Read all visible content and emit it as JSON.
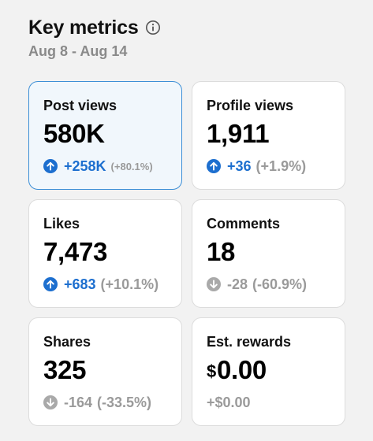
{
  "header": {
    "title": "Key metrics",
    "date_range": "Aug 8 - Aug 14"
  },
  "icons": {
    "info": "info-circle-icon",
    "up": "arrow-up-circle-icon",
    "down": "arrow-down-circle-icon"
  },
  "colors": {
    "accent": "#1d6fcf",
    "muted": "#9a9a9a",
    "selected_bg": "#f1f7fc",
    "selected_border": "#3d8fd6"
  },
  "metrics": [
    {
      "label": "Post views",
      "value": "580K",
      "delta": "+258K",
      "pct": "(+80.1%)",
      "trend": "up",
      "selected": true
    },
    {
      "label": "Profile views",
      "value": "1,911",
      "delta": "+36",
      "pct": "(+1.9%)",
      "trend": "up",
      "selected": false
    },
    {
      "label": "Likes",
      "value": "7,473",
      "delta": "+683",
      "pct": "(+10.1%)",
      "trend": "up",
      "selected": false
    },
    {
      "label": "Comments",
      "value": "18",
      "delta": "-28",
      "pct": "(-60.9%)",
      "trend": "down",
      "selected": false
    },
    {
      "label": "Shares",
      "value": "325",
      "delta": "-164",
      "pct": "(-33.5%)",
      "trend": "down",
      "selected": false
    },
    {
      "label": "Est. rewards",
      "currency": "$",
      "value": "0.00",
      "delta": "+$0.00",
      "pct": "",
      "trend": "none",
      "selected": false
    }
  ]
}
